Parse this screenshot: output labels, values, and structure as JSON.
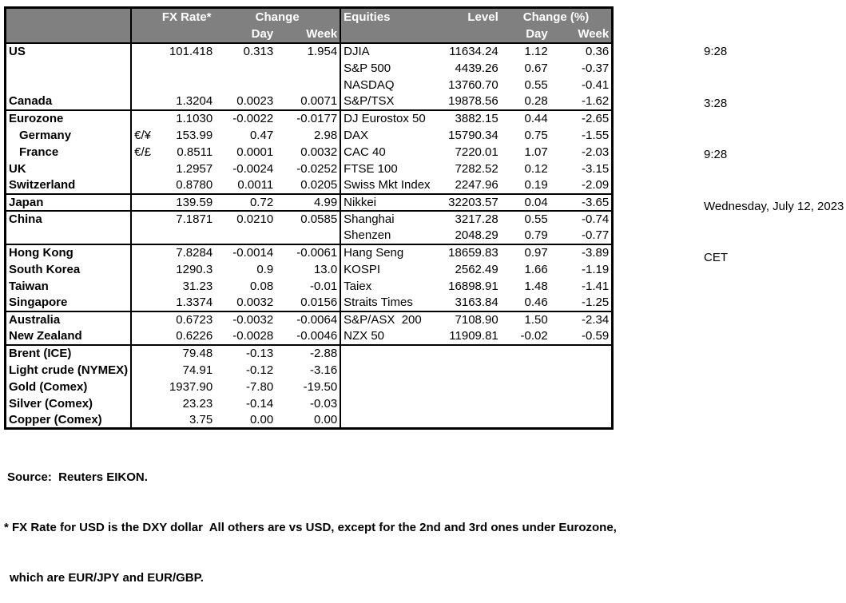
{
  "colors": {
    "header_bg": "#808080",
    "header_text": "#ffffff",
    "border": "#000000",
    "page_bg": "#ffffff"
  },
  "timestamps": {
    "lines": [
      "9:28",
      "3:28",
      "9:28",
      "Wednesday, July 12, 2023",
      "CET"
    ]
  },
  "table": {
    "header": {
      "fx_rate": "FX Rate*",
      "change": "Change",
      "day": "Day",
      "week": "Week",
      "equities": "Equities",
      "level": "Level",
      "change_pct": "Change (%)"
    },
    "rows": [
      {
        "label": "US",
        "pair": "",
        "rate": "101.418",
        "day": "0.313",
        "week": "1.954",
        "eq": "DJIA",
        "level": "11634.24",
        "eq_day": "1.12",
        "eq_week": "0.36",
        "indent": false,
        "sep": false
      },
      {
        "label": "",
        "pair": "",
        "rate": "",
        "day": "",
        "week": "",
        "eq": "S&P 500",
        "level": "4439.26",
        "eq_day": "0.67",
        "eq_week": "-0.37",
        "indent": false,
        "sep": false
      },
      {
        "label": "",
        "pair": "",
        "rate": "",
        "day": "",
        "week": "",
        "eq": "NASDAQ",
        "level": "13760.70",
        "eq_day": "0.55",
        "eq_week": "-0.41",
        "indent": false,
        "sep": false
      },
      {
        "label": "Canada",
        "pair": "",
        "rate": "1.3204",
        "day": "0.0023",
        "week": "0.0071",
        "eq": "S&P/TSX",
        "level": "19878.56",
        "eq_day": "0.28",
        "eq_week": "-1.62",
        "indent": false,
        "sep": true
      },
      {
        "label": "Eurozone",
        "pair": "",
        "rate": "1.1030",
        "day": "-0.0022",
        "week": "-0.0177",
        "eq": "DJ Eurostox 50",
        "level": "3882.15",
        "eq_day": "0.44",
        "eq_week": "-2.65",
        "indent": false,
        "sep": false
      },
      {
        "label": "Germany",
        "pair": "€/¥",
        "rate": "153.99",
        "day": "0.47",
        "week": "2.98",
        "eq": "DAX",
        "level": "15790.34",
        "eq_day": "0.75",
        "eq_week": "-1.55",
        "indent": true,
        "sep": false
      },
      {
        "label": "France",
        "pair": "€/£",
        "rate": "0.8511",
        "day": "0.0001",
        "week": "0.0032",
        "eq": "CAC 40",
        "level": "7220.01",
        "eq_day": "1.07",
        "eq_week": "-2.03",
        "indent": true,
        "sep": false
      },
      {
        "label": "UK",
        "pair": "",
        "rate": "1.2957",
        "day": "-0.0024",
        "week": "-0.0252",
        "eq": "FTSE 100",
        "level": "7282.52",
        "eq_day": "0.12",
        "eq_week": "-3.15",
        "indent": false,
        "sep": false
      },
      {
        "label": "Switzerland",
        "pair": "",
        "rate": "0.8780",
        "day": "0.0011",
        "week": "0.0205",
        "eq": "Swiss Mkt Index",
        "level": "2247.96",
        "eq_day": "0.19",
        "eq_week": "-2.09",
        "indent": false,
        "sep": true
      },
      {
        "label": "Japan",
        "pair": "",
        "rate": "139.59",
        "day": "0.72",
        "week": "4.99",
        "eq": "Nikkei",
        "level": "32203.57",
        "eq_day": "0.04",
        "eq_week": "-3.65",
        "indent": false,
        "sep": true
      },
      {
        "label": "China",
        "pair": "",
        "rate": "7.1871",
        "day": "0.0210",
        "week": "0.0585",
        "eq": "Shanghai",
        "level": "3217.28",
        "eq_day": "0.55",
        "eq_week": "-0.74",
        "indent": false,
        "sep": false
      },
      {
        "label": "",
        "pair": "",
        "rate": "",
        "day": "",
        "week": "",
        "eq": "Shenzen",
        "level": "2048.29",
        "eq_day": "0.79",
        "eq_week": "-0.77",
        "indent": false,
        "sep": true
      },
      {
        "label": "Hong Kong",
        "pair": "",
        "rate": "7.8284",
        "day": "-0.0014",
        "week": "-0.0061",
        "eq": "Hang Seng",
        "level": "18659.83",
        "eq_day": "0.97",
        "eq_week": "-3.89",
        "indent": false,
        "sep": false
      },
      {
        "label": "South Korea",
        "pair": "",
        "rate": "1290.3",
        "day": "0.9",
        "week": "13.0",
        "eq": "KOSPI",
        "level": "2562.49",
        "eq_day": "1.66",
        "eq_week": "-1.19",
        "indent": false,
        "sep": false
      },
      {
        "label": "Taiwan",
        "pair": "",
        "rate": "31.23",
        "day": "0.08",
        "week": "-0.01",
        "eq": "Taiex",
        "level": "16898.91",
        "eq_day": "1.48",
        "eq_week": "-1.41",
        "indent": false,
        "sep": false
      },
      {
        "label": "Singapore",
        "pair": "",
        "rate": "1.3374",
        "day": "0.0032",
        "week": "0.0156",
        "eq": "Straits Times",
        "level": "3163.84",
        "eq_day": "0.46",
        "eq_week": "-1.25",
        "indent": false,
        "sep": true
      },
      {
        "label": "Australia",
        "pair": "",
        "rate": "0.6723",
        "day": "-0.0032",
        "week": "-0.0064",
        "eq": "S&P/ASX  200",
        "level": "7108.90",
        "eq_day": "1.50",
        "eq_week": "-2.34",
        "indent": false,
        "sep": false
      },
      {
        "label": "New Zealand",
        "pair": "",
        "rate": "0.6226",
        "day": "-0.0028",
        "week": "-0.0046",
        "eq": "NZX 50",
        "level": "11909.81",
        "eq_day": "-0.02",
        "eq_week": "-0.59",
        "indent": false,
        "sep": true
      },
      {
        "label": "Brent (ICE)",
        "pair": "",
        "rate": "79.48",
        "day": "-0.13",
        "week": "-2.88",
        "eq": "",
        "level": "",
        "eq_day": "",
        "eq_week": "",
        "indent": false,
        "sep": false
      },
      {
        "label": "Light crude (NYMEX)",
        "pair": "",
        "rate": "74.91",
        "day": "-0.12",
        "week": "-3.16",
        "eq": "",
        "level": "",
        "eq_day": "",
        "eq_week": "",
        "indent": false,
        "sep": false
      },
      {
        "label": "Gold (Comex)",
        "pair": "",
        "rate": "1937.90",
        "day": "-7.80",
        "week": "-19.50",
        "eq": "",
        "level": "",
        "eq_day": "",
        "eq_week": "",
        "indent": false,
        "sep": false
      },
      {
        "label": "Silver (Comex)",
        "pair": "",
        "rate": "23.23",
        "day": "-0.14",
        "week": "-0.03",
        "eq": "",
        "level": "",
        "eq_day": "",
        "eq_week": "",
        "indent": false,
        "sep": false
      },
      {
        "label": "Copper (Comex)",
        "pair": "",
        "rate": "3.75",
        "day": "0.00",
        "week": "0.00",
        "eq": "",
        "level": "",
        "eq_day": "",
        "eq_week": "",
        "indent": false,
        "sep": false
      }
    ]
  },
  "footer": {
    "source": "Source:  Reuters EIKON.",
    "note1": "* FX Rate for USD is the DXY dollar  All others are vs USD, except for the 2nd and 3rd ones under Eurozone,",
    "note2": "which are EUR/JPY and EUR/GBP."
  }
}
